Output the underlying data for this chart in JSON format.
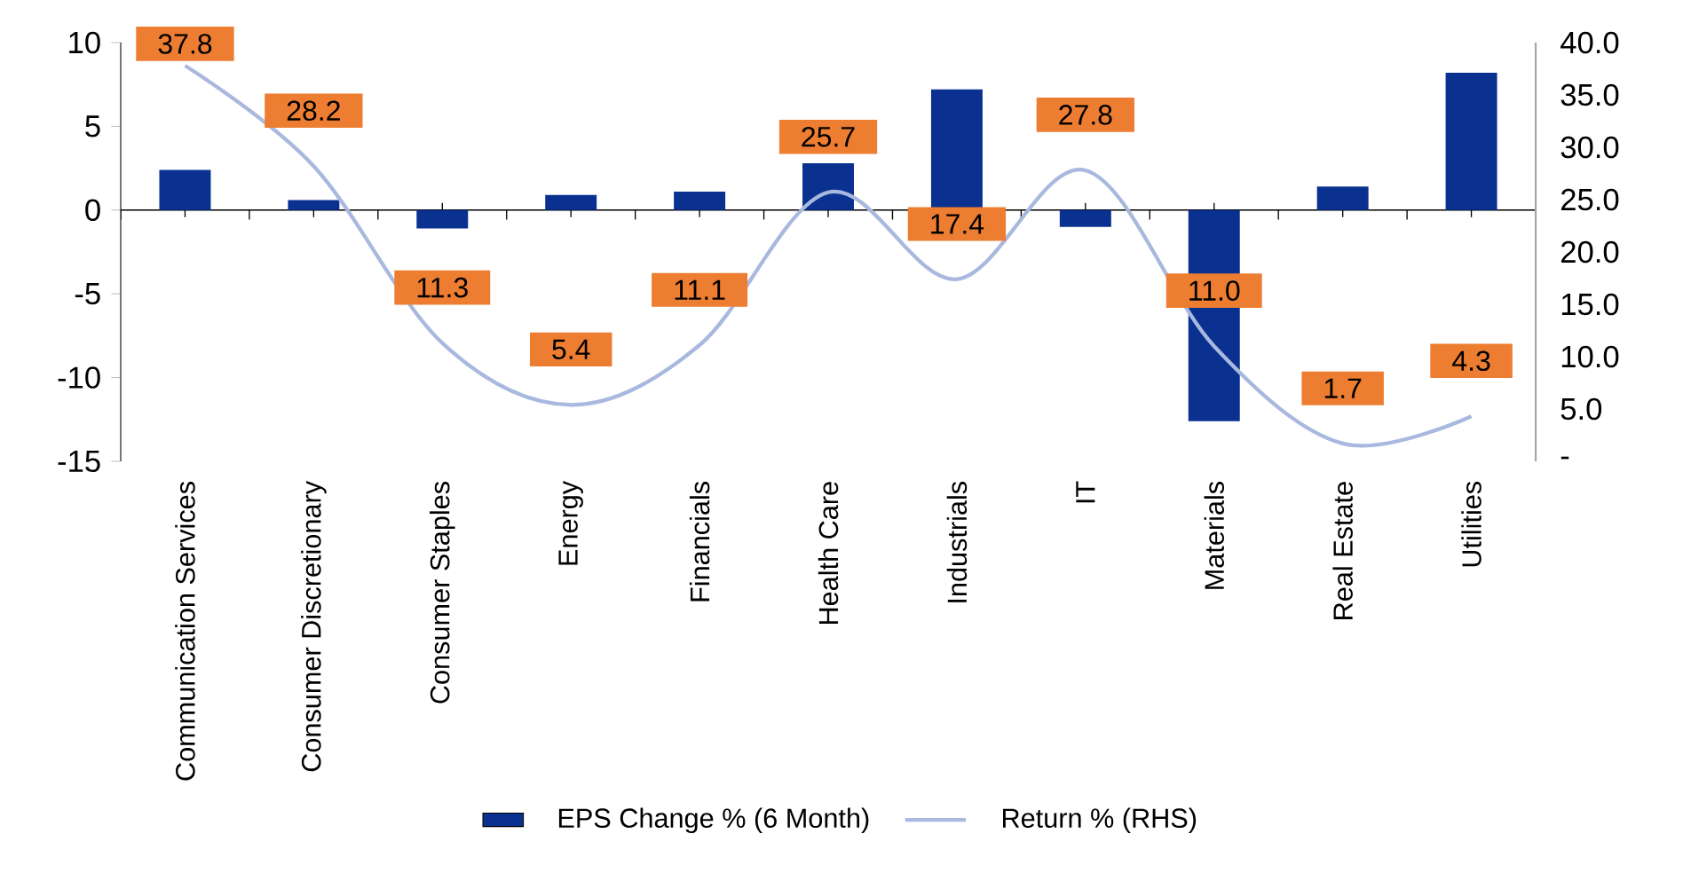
{
  "chart_data": {
    "type": "bar",
    "categories": [
      "Communication Services",
      "Consumer Discretionary",
      "Consumer Staples",
      "Energy",
      "Financials",
      "Health Care",
      "Industrials",
      "IT",
      "Materials",
      "Real Estate",
      "Utilities"
    ],
    "series": [
      {
        "name": "EPS Change % (6 Month)",
        "color": "#0a3190",
        "values": [
          2.4,
          0.6,
          -1.1,
          0.9,
          1.1,
          2.8,
          7.2,
          -1.0,
          -12.6,
          1.4,
          8.2
        ]
      },
      {
        "name": "Return % (RHS)",
        "type": "line",
        "axis": "y2",
        "color": "#a9b8de",
        "values": [
          37.8,
          28.2,
          11.3,
          5.4,
          11.1,
          25.7,
          17.4,
          27.8,
          11.0,
          1.7,
          4.3
        ],
        "value_labels": [
          "37.8",
          "28.2",
          "11.3",
          "5.4",
          "11.1",
          "25.7",
          "17.4",
          "27.8",
          "11.0",
          "1.7",
          "4.3"
        ]
      }
    ],
    "ylim": [
      -15,
      10
    ],
    "yticks": [
      -15,
      -10,
      -5,
      0,
      5,
      10
    ],
    "y2lim": [
      0,
      40
    ],
    "y2ticks": [
      {
        "value": 0,
        "label": "-"
      },
      {
        "value": 5,
        "label": "5.0"
      },
      {
        "value": 10,
        "label": "10.0"
      },
      {
        "value": 15,
        "label": "15.0"
      },
      {
        "value": 20,
        "label": "20.0"
      },
      {
        "value": 25,
        "label": "25.0"
      },
      {
        "value": 30,
        "label": "30.0"
      },
      {
        "value": 35,
        "label": "35.0"
      },
      {
        "value": 40,
        "label": "40.0"
      }
    ],
    "legend": "bottom"
  }
}
